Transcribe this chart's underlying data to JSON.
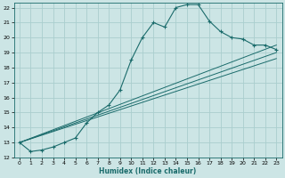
{
  "xlabel": "Humidex (Indice chaleur)",
  "xlim": [
    -0.5,
    23.5
  ],
  "ylim": [
    12,
    22.3
  ],
  "xticks": [
    0,
    1,
    2,
    3,
    4,
    5,
    6,
    7,
    8,
    9,
    10,
    11,
    12,
    13,
    14,
    15,
    16,
    17,
    18,
    19,
    20,
    21,
    22,
    23
  ],
  "yticks": [
    12,
    13,
    14,
    15,
    16,
    17,
    18,
    19,
    20,
    21,
    22
  ],
  "background_color": "#cce5e5",
  "grid_color": "#aacece",
  "line_color": "#1a6b6b",
  "wavy_line": {
    "x": [
      0,
      1,
      2,
      3,
      4,
      5,
      6,
      7,
      8,
      9,
      10,
      11,
      12,
      13,
      14,
      15,
      16,
      17,
      18,
      19,
      20,
      21,
      22,
      23
    ],
    "y": [
      13.0,
      12.4,
      12.5,
      12.7,
      13.0,
      13.3,
      14.3,
      15.0,
      15.5,
      16.5,
      18.5,
      20.0,
      21.0,
      20.7,
      22.0,
      22.2,
      22.2,
      21.1,
      20.4,
      20.0,
      19.9,
      19.5,
      19.5,
      19.2
    ]
  },
  "straight_lines": [
    {
      "x": [
        0,
        23
      ],
      "y": [
        13.0,
        19.5
      ]
    },
    {
      "x": [
        0,
        23
      ],
      "y": [
        13.0,
        19.0
      ]
    },
    {
      "x": [
        0,
        23
      ],
      "y": [
        13.0,
        18.6
      ]
    }
  ]
}
